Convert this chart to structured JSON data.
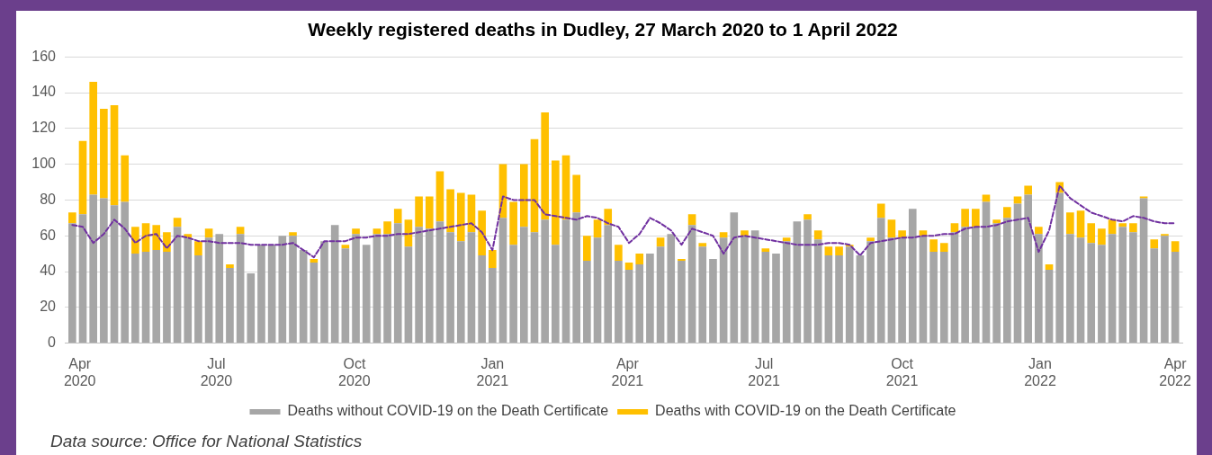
{
  "chart_data": {
    "type": "bar",
    "title": "Weekly registered deaths in Dudley, 27 March 2020 to 1 April 2022",
    "stacked": true,
    "grid": "y",
    "legend": "bottom",
    "line_style": "dashed",
    "marker": "none",
    "x": [
      "2020-03-27",
      "2020-04-03",
      "2020-04-10",
      "2020-04-17",
      "2020-04-24",
      "2020-05-01",
      "2020-05-08",
      "2020-05-15",
      "2020-05-22",
      "2020-05-29",
      "2020-06-05",
      "2020-06-12",
      "2020-06-19",
      "2020-06-26",
      "2020-07-03",
      "2020-07-10",
      "2020-07-17",
      "2020-07-24",
      "2020-07-31",
      "2020-08-07",
      "2020-08-14",
      "2020-08-21",
      "2020-08-28",
      "2020-09-04",
      "2020-09-11",
      "2020-09-18",
      "2020-09-25",
      "2020-10-02",
      "2020-10-09",
      "2020-10-16",
      "2020-10-23",
      "2020-10-30",
      "2020-11-06",
      "2020-11-13",
      "2020-11-20",
      "2020-11-27",
      "2020-12-04",
      "2020-12-11",
      "2020-12-18",
      "2020-12-25",
      "2021-01-01",
      "2021-01-08",
      "2021-01-15",
      "2021-01-22",
      "2021-01-29",
      "2021-02-05",
      "2021-02-12",
      "2021-02-19",
      "2021-02-26",
      "2021-03-05",
      "2021-03-12",
      "2021-03-19",
      "2021-03-26",
      "2021-04-02",
      "2021-04-09",
      "2021-04-16",
      "2021-04-23",
      "2021-04-30",
      "2021-05-07",
      "2021-05-14",
      "2021-05-21",
      "2021-05-28",
      "2021-06-04",
      "2021-06-11",
      "2021-06-18",
      "2021-06-25",
      "2021-07-02",
      "2021-07-09",
      "2021-07-16",
      "2021-07-23",
      "2021-07-30",
      "2021-08-06",
      "2021-08-13",
      "2021-08-20",
      "2021-08-27",
      "2021-09-03",
      "2021-09-10",
      "2021-09-17",
      "2021-09-24",
      "2021-10-01",
      "2021-10-08",
      "2021-10-15",
      "2021-10-22",
      "2021-10-29",
      "2021-11-05",
      "2021-11-12",
      "2021-11-19",
      "2021-11-26",
      "2021-12-03",
      "2021-12-10",
      "2021-12-17",
      "2021-12-24",
      "2021-12-31",
      "2022-01-07",
      "2022-01-14",
      "2022-01-21",
      "2022-01-28",
      "2022-02-04",
      "2022-02-11",
      "2022-02-18",
      "2022-02-25",
      "2022-03-04",
      "2022-03-11",
      "2022-03-18",
      "2022-03-25",
      "2022-04-01"
    ],
    "xlim": [
      "2020-03-22",
      "2022-04-06"
    ],
    "xticks": [
      {
        "value": "2020-04-01",
        "label": "Apr 2020"
      },
      {
        "value": "2020-07-01",
        "label": "Jul 2020"
      },
      {
        "value": "2020-10-01",
        "label": "Oct 2020"
      },
      {
        "value": "2021-01-01",
        "label": "Jan 2021"
      },
      {
        "value": "2021-04-01",
        "label": "Apr 2021"
      },
      {
        "value": "2021-07-01",
        "label": "Jul 2021"
      },
      {
        "value": "2021-10-01",
        "label": "Oct 2021"
      },
      {
        "value": "2022-01-01",
        "label": "Jan 2022"
      },
      {
        "value": "2022-04-01",
        "label": "Apr 2022"
      }
    ],
    "ylim": [
      0,
      160
    ],
    "yticks": [
      0,
      20,
      40,
      60,
      80,
      100,
      120,
      140,
      160
    ],
    "series": [
      {
        "name": "Deaths without COVID-19 on the Death Certificate",
        "color": "#a6a6a6",
        "values": [
          67,
          72,
          83,
          81,
          77,
          79,
          50,
          51,
          52,
          51,
          65,
          59,
          49,
          59,
          61,
          42,
          61,
          39,
          55,
          55,
          60,
          60,
          52,
          45,
          57,
          66,
          53,
          61,
          55,
          61,
          61,
          67,
          54,
          65,
          64,
          68,
          62,
          57,
          62,
          49,
          42,
          70,
          55,
          65,
          62,
          69,
          55,
          69,
          73,
          46,
          59,
          66,
          46,
          41,
          44,
          50,
          54,
          61,
          46,
          66,
          54,
          47,
          59,
          73,
          60,
          63,
          51,
          50,
          57,
          68,
          69,
          58,
          49,
          49,
          54,
          49,
          57,
          70,
          59,
          59,
          75,
          60,
          51,
          51,
          62,
          65,
          65,
          79,
          67,
          70,
          78,
          83,
          61,
          41,
          84,
          61,
          59,
          56,
          55,
          61,
          65,
          62,
          81,
          53,
          60,
          51
        ]
      },
      {
        "name": "Deaths with COVID-19 on the Death Certificate",
        "color": "#ffc000",
        "values": [
          6,
          41,
          63,
          50,
          56,
          26,
          15,
          16,
          14,
          11,
          5,
          2,
          8,
          5,
          0,
          2,
          4,
          0,
          0,
          0,
          0,
          2,
          0,
          2,
          0,
          0,
          2,
          3,
          0,
          3,
          7,
          8,
          15,
          17,
          18,
          28,
          24,
          27,
          21,
          25,
          10,
          30,
          24,
          35,
          52,
          60,
          47,
          36,
          21,
          14,
          10,
          9,
          9,
          4,
          6,
          0,
          5,
          0,
          1,
          6,
          2,
          0,
          3,
          0,
          3,
          0,
          2,
          0,
          2,
          0,
          3,
          5,
          5,
          5,
          1,
          0,
          2,
          8,
          10,
          4,
          0,
          3,
          7,
          5,
          5,
          10,
          10,
          4,
          2,
          6,
          4,
          5,
          4,
          3,
          6,
          12,
          15,
          11,
          9,
          8,
          2,
          5,
          1,
          5,
          1,
          6
        ]
      },
      {
        "type": "line",
        "color": "#7030a0",
        "values": [
          66,
          65,
          56,
          61,
          69,
          64,
          56,
          60,
          61,
          53,
          60,
          59,
          57,
          57,
          56,
          56,
          56,
          55,
          55,
          55,
          55,
          56,
          52,
          48,
          57,
          57,
          57,
          59,
          59,
          60,
          60,
          61,
          61,
          62,
          63,
          64,
          65,
          66,
          67,
          62,
          52,
          82,
          80,
          80,
          80,
          72,
          71,
          70,
          69,
          71,
          70,
          67,
          65,
          56,
          61,
          70,
          67,
          63,
          55,
          64,
          62,
          60,
          50,
          59,
          60,
          59,
          58,
          57,
          56,
          55,
          55,
          55,
          56,
          56,
          55,
          49,
          56,
          57,
          58,
          59,
          59,
          60,
          60,
          61,
          61,
          64,
          65,
          65,
          66,
          68,
          69,
          70,
          51,
          63,
          88,
          81,
          77,
          73,
          71,
          69,
          68,
          71,
          70,
          68,
          67,
          67
        ]
      }
    ],
    "annotations": [
      "Data source: Office for National Statistics"
    ]
  }
}
